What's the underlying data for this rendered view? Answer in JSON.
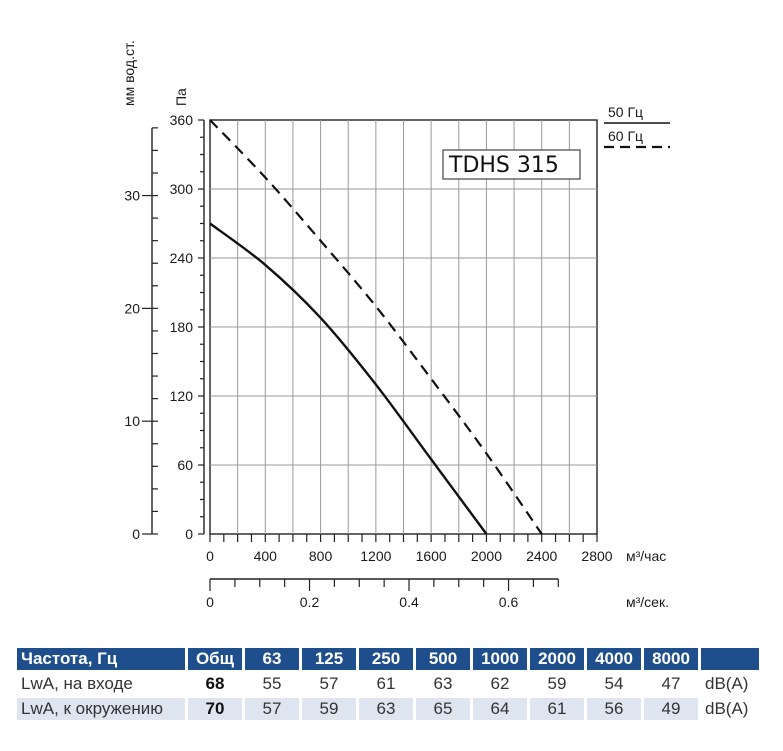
{
  "chart_data": {
    "type": "line",
    "model_label": "TDHS 315",
    "x_axis": {
      "label": "м³/час",
      "ticks": [
        "0",
        "400",
        "800",
        "1200",
        "1600",
        "2000",
        "2400",
        "2800"
      ],
      "range": [
        0,
        2800
      ]
    },
    "x2_axis": {
      "label": "м³/сек.",
      "ticks": [
        "0",
        "0.2",
        "0.4",
        "0.6"
      ],
      "range": [
        0,
        0.777
      ]
    },
    "y_axis": {
      "label": "Па",
      "ticks": [
        "0",
        "60",
        "120",
        "180",
        "240",
        "300",
        "360"
      ],
      "range": [
        0,
        360
      ]
    },
    "y2_axis": {
      "label": "мм вод.ст.",
      "ticks": [
        "0",
        "10",
        "20",
        "30"
      ],
      "range": [
        0,
        36.7
      ]
    },
    "grid": true,
    "legend": [
      {
        "name": "50 Гц",
        "style": "solid"
      },
      {
        "name": "60 Гц",
        "style": "dashed"
      }
    ],
    "series": [
      {
        "name": "50 Гц",
        "style": "solid",
        "x": [
          0,
          400,
          800,
          1200,
          1600,
          2000
        ],
        "y": [
          270,
          234,
          188,
          130,
          65,
          0
        ]
      },
      {
        "name": "60 Гц",
        "style": "dashed",
        "x": [
          0,
          400,
          800,
          1200,
          1600,
          2000,
          2400
        ],
        "y": [
          360,
          310,
          255,
          198,
          135,
          70,
          0
        ]
      }
    ]
  },
  "noise_table": {
    "header": {
      "freq_label": "Частота, Гц",
      "total_label": "Общ",
      "bands": [
        "63",
        "125",
        "250",
        "500",
        "1000",
        "2000",
        "4000",
        "8000"
      ]
    },
    "rows": [
      {
        "label": "LwA, на входе",
        "total": "68",
        "values": [
          "55",
          "57",
          "61",
          "63",
          "62",
          "59",
          "54",
          "47"
        ],
        "unit": "dB(A)"
      },
      {
        "label": "LwA, к окружению",
        "total": "70",
        "values": [
          "57",
          "59",
          "63",
          "65",
          "64",
          "61",
          "56",
          "49"
        ],
        "unit": "dB(A)"
      }
    ]
  }
}
